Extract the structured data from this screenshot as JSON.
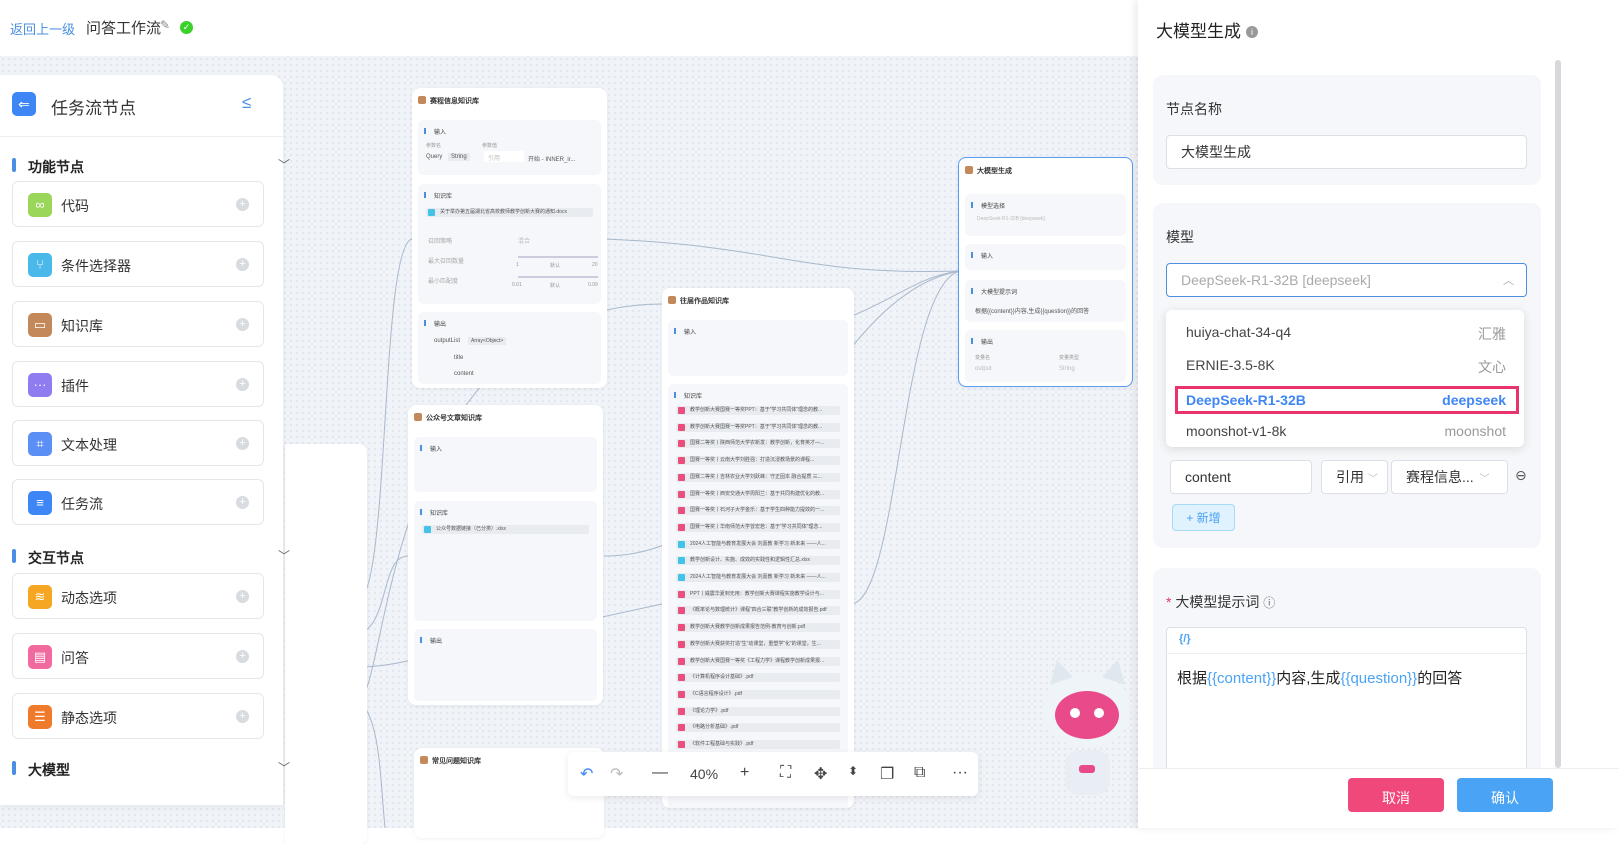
{
  "header": {
    "back": "返回上一级",
    "title": "问答工作流"
  },
  "sidebar": {
    "title": "任务流节点",
    "groups": [
      {
        "label": "功能节点",
        "items": [
          {
            "label": "代码",
            "color": "#9ad65a"
          },
          {
            "label": "条件选择器",
            "color": "#4ab8e8"
          },
          {
            "label": "知识库",
            "color": "#c4895a"
          },
          {
            "label": "插件",
            "color": "#8f7cf0"
          },
          {
            "label": "文本处理",
            "color": "#5b8ff5"
          },
          {
            "label": "任务流",
            "color": "#3e86f5"
          }
        ]
      },
      {
        "label": "交互节点",
        "items": [
          {
            "label": "动态选项",
            "color": "#f5a623"
          },
          {
            "label": "问答",
            "color": "#f06aa0"
          },
          {
            "label": "静态选项",
            "color": "#f07a2c"
          }
        ]
      },
      {
        "label": "大模型",
        "items": []
      }
    ]
  },
  "canvas": {
    "node1": {
      "title": "赛程信息知识库",
      "input": "输入",
      "param_name": "参数名",
      "param_value": "参数值",
      "query": "Query",
      "string": "String",
      "ref": "引用",
      "start": "开始 - INNER_ir...",
      "kb": "知识库",
      "file": "关于举办第五届湖北省高校教师教学创新大赛的通知.docx",
      "recall": "召回策略",
      "mix": "混合",
      "max": "最大召回数量",
      "min": "最小匹配度",
      "default": "默认",
      "s1": "1",
      "s20": "20",
      "s001": "0.01",
      "s099": "0.99",
      "output": "输出",
      "outputList": "outputList",
      "arr": "Array<Object>",
      "title_f": "title",
      "content_f": "content"
    },
    "node2": {
      "title": "公众号文章知识库",
      "file": "公众号数据链接（已分类）.xlsx"
    },
    "node3": {
      "title": "往届作品知识库",
      "files": [
        "教学创新大赛国赛一等奖PPT：基于“学习共同体”理念的教...",
        "教学创新大赛国赛一等奖PPT：基于“学习共同体”理念的教...",
        "国赛二等奖丨陕西师范大学农新发：教学创新，化育英才—...",
        "国赛一等奖丨云南大学刘胜强：打造沉浸教场景的课程...",
        "国赛二等奖丨吉林农业大学刘跃峰：守正固本 融合提质 三...",
        "国赛一等奖丨西安交通大学周阳兰：基于共同构建优化的教...",
        "国赛一等奖丨石河子大学金乐：基于学生四种能力提效的一...",
        "国赛一等奖丨华南师范大学曾宏若：基于“学习共同体”理念...",
        "2024人工智能与教育发展大会 刘嘉教 新学习 新未来 ——人...",
        "教学创新设计、实施、成效的实践性和逻辑性汇总.xlsx",
        "2024人工智能与教育发展大会 刘嘉教 新学习 新未来 ——人...",
        "PPT丨威震华夏到无用：教学创新大赛课程实施教学设计与...",
        "《概率论与数理统计》课程“四合三联”教学创新的成效报告.pdf",
        "教学创新大赛教学创新成果报告范例-教育与创新.pdf",
        "教学创新大赛获奖打造“生”动课堂，重塑学“化”的课堂，生...",
        "教学创新大赛国赛一等奖《工程力学》课程教学创新成果报...",
        "《计算机程序设计基础》.pdf",
        "《C语言程序设计》.pdf",
        "《理论力学》.pdf",
        "《电路分析基础》.pdf",
        "《软件工程基础与实践》.pdf"
      ]
    },
    "node4": {
      "title": "常见问题知识库"
    },
    "llm": {
      "title": "大模型生成",
      "model_sel": "模型选择",
      "model_val": "DeepSeek-R1-32B [deepseek]",
      "input": "输入",
      "prompt": "大模型提示词",
      "prompt_val": "根据{{content}}内容,生成{{question}}的回答",
      "output": "输出",
      "var_name": "变量名",
      "var_type": "变量类型",
      "out_name": "output",
      "out_type": "String"
    },
    "toolbar": {
      "zoom": "40%"
    }
  },
  "panel": {
    "title": "大模型生成",
    "node_name_label": "节点名称",
    "node_name": "大模型生成",
    "model_label": "模型",
    "model_placeholder": "DeepSeek-R1-32B [deepseek]",
    "options": [
      {
        "name": "huiya-chat-34-q4",
        "provider": "汇雅"
      },
      {
        "name": "ERNIE-3.5-8K",
        "provider": "文心"
      },
      {
        "name": "DeepSeek-R1-32B",
        "provider": "deepseek",
        "selected": true
      },
      {
        "name": "moonshot-v1-8k",
        "provider": "moonshot"
      }
    ],
    "param_name": "content",
    "param_type": "引用",
    "param_source": "赛程信息...",
    "add": "+ 新增",
    "prompt_label": "大模型提示词",
    "prompt_tool": "{/}",
    "prompt_pre": "根据",
    "prompt_v1": "{{content}}",
    "prompt_mid": "内容,生成",
    "prompt_v2": "{{question}}",
    "prompt_post": "的回答",
    "cancel": "取消",
    "confirm": "确认",
    "cancel_color": "#f0487a",
    "confirm_color": "#4aa3f5"
  }
}
